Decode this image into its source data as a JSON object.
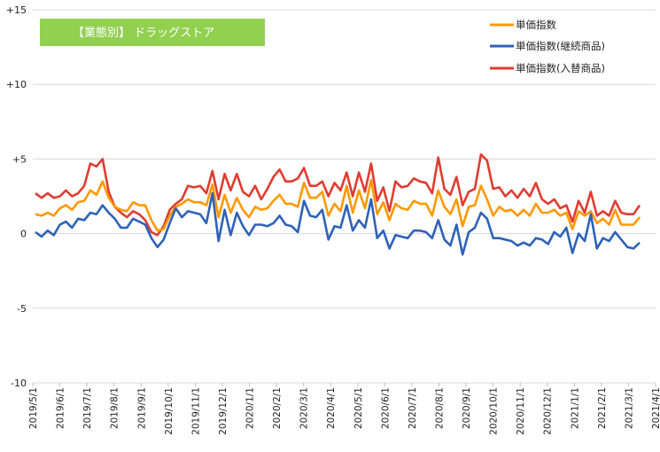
{
  "chart_data": {
    "type": "line",
    "title": "【業態別】 ドラッグストア",
    "title_bg_color": "#92d050",
    "ylim": [
      -10,
      15
    ],
    "yticks": [
      -10,
      -5,
      0,
      5,
      10,
      15
    ],
    "ytick_labels": [
      "-10",
      "-5",
      "0",
      "+5",
      "+10",
      "+15"
    ],
    "grid": true,
    "legend_position": "top-right",
    "x_labels": [
      "2019/5/1",
      "2019/6/1",
      "2019/7/1",
      "2019/8/1",
      "2019/9/1",
      "2019/10/1",
      "2019/11/1",
      "2019/12/1",
      "2020/1/1",
      "2020/2/1",
      "2020/3/1",
      "2020/4/1",
      "2020/5/1",
      "2020/6/1",
      "2020/7/1",
      "2020/8/1",
      "2020/9/1",
      "2020/10/1",
      "2020/11/1",
      "2020/12/1",
      "2021/1/1",
      "2021/2/1",
      "2021/3/1",
      "2021/4/1"
    ],
    "series": [
      {
        "name": "単価指数",
        "color": "#ff9900",
        "values": [
          1.3,
          1.2,
          1.4,
          1.2,
          1.7,
          1.9,
          1.6,
          2.1,
          2.2,
          2.9,
          2.6,
          3.5,
          2.4,
          1.8,
          1.6,
          1.5,
          2.1,
          1.9,
          1.9,
          0.9,
          0.2,
          0.3,
          1.2,
          1.8,
          2.0,
          2.3,
          2.1,
          2.1,
          1.9,
          3.3,
          1.1,
          2.6,
          1.4,
          2.4,
          1.6,
          1.1,
          1.8,
          1.6,
          1.7,
          2.2,
          2.6,
          2.0,
          2.0,
          1.8,
          3.4,
          2.4,
          2.4,
          2.8,
          1.2,
          2.0,
          1.5,
          3.2,
          1.4,
          2.9,
          1.7,
          3.6,
          1.3,
          2.1,
          0.9,
          2.0,
          1.7,
          1.6,
          2.2,
          2.0,
          2.0,
          1.2,
          2.9,
          1.8,
          1.3,
          2.3,
          0.5,
          1.8,
          1.9,
          3.2,
          2.3,
          1.2,
          1.8,
          1.5,
          1.6,
          1.2,
          1.6,
          1.2,
          2.0,
          1.4,
          1.4,
          1.6,
          1.2,
          1.4,
          0.3,
          1.5,
          1.2,
          1.5,
          0.7,
          1.0,
          0.6,
          1.6,
          0.6,
          0.6,
          0.6,
          1.1
        ]
      },
      {
        "name": "単価指数(継続商品)",
        "color": "#2e62b8",
        "values": [
          0.1,
          -0.2,
          0.2,
          -0.1,
          0.6,
          0.8,
          0.4,
          1.0,
          0.9,
          1.4,
          1.3,
          1.9,
          1.4,
          1.0,
          0.4,
          0.4,
          1.0,
          0.8,
          0.6,
          -0.3,
          -0.9,
          -0.4,
          0.7,
          1.7,
          1.1,
          1.5,
          1.4,
          1.3,
          0.7,
          2.7,
          -0.5,
          1.6,
          -0.1,
          1.4,
          0.5,
          -0.1,
          0.6,
          0.6,
          0.5,
          0.7,
          1.2,
          0.6,
          0.5,
          0.1,
          2.2,
          1.2,
          1.1,
          1.6,
          -0.4,
          0.5,
          0.4,
          1.9,
          0.2,
          0.9,
          0.4,
          2.3,
          -0.3,
          0.2,
          -1.0,
          -0.1,
          -0.2,
          -0.3,
          0.2,
          0.2,
          0.1,
          -0.3,
          0.9,
          -0.4,
          -0.8,
          0.6,
          -1.4,
          0.1,
          0.4,
          1.4,
          1.0,
          -0.3,
          -0.3,
          -0.4,
          -0.5,
          -0.8,
          -0.6,
          -0.8,
          -0.3,
          -0.4,
          -0.7,
          0.1,
          -0.2,
          0.4,
          -1.3,
          0.0,
          -0.5,
          1.3,
          -1.0,
          -0.3,
          -0.5,
          0.1,
          -0.4,
          -0.9,
          -1.0,
          -0.6
        ]
      },
      {
        "name": "単価指数(入替商品)",
        "color": "#e03c31",
        "values": [
          2.7,
          2.4,
          2.7,
          2.4,
          2.5,
          2.9,
          2.5,
          2.7,
          3.2,
          4.7,
          4.5,
          5.0,
          2.8,
          1.8,
          1.4,
          1.1,
          1.5,
          1.3,
          0.9,
          0.1,
          -0.1,
          0.5,
          1.6,
          2.0,
          2.3,
          3.2,
          3.1,
          3.2,
          2.7,
          4.2,
          2.3,
          4.0,
          2.9,
          4.0,
          2.8,
          2.5,
          3.2,
          2.3,
          3.0,
          3.8,
          4.3,
          3.5,
          3.5,
          3.7,
          4.4,
          3.2,
          3.2,
          3.5,
          2.5,
          3.4,
          2.9,
          4.1,
          2.5,
          4.1,
          2.8,
          4.7,
          2.2,
          3.1,
          1.5,
          3.5,
          3.1,
          3.2,
          3.7,
          3.5,
          3.4,
          2.7,
          5.1,
          3.0,
          2.6,
          3.8,
          1.9,
          2.8,
          3.0,
          5.3,
          4.9,
          3.0,
          3.1,
          2.5,
          2.9,
          2.4,
          3.0,
          2.5,
          3.4,
          2.3,
          2.0,
          2.3,
          1.7,
          1.9,
          0.8,
          2.2,
          1.4,
          2.8,
          1.2,
          1.5,
          1.2,
          2.2,
          1.4,
          1.3,
          1.3,
          1.9
        ]
      }
    ]
  }
}
